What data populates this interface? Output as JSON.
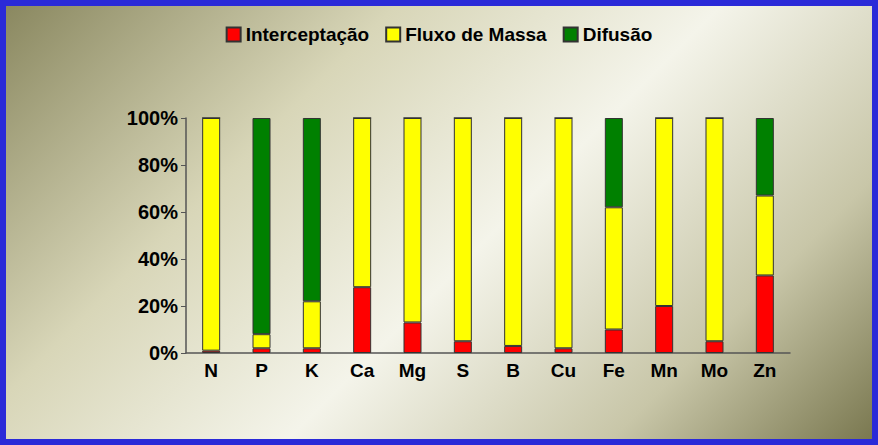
{
  "chart_data": {
    "type": "bar",
    "stacked": true,
    "categories": [
      "N",
      "P",
      "K",
      "Ca",
      "Mg",
      "S",
      "B",
      "Cu",
      "Fe",
      "Mn",
      "Mo",
      "Zn"
    ],
    "series": [
      {
        "name": "Interceptação",
        "color": "#ff0000",
        "values": [
          1,
          2,
          2,
          28,
          13,
          5,
          3,
          2,
          10,
          20,
          5,
          33
        ]
      },
      {
        "name": "Fluxo de Massa",
        "color": "#ffff00",
        "values": [
          99,
          6,
          20,
          72,
          87,
          95,
          97,
          98,
          52,
          80,
          95,
          34
        ]
      },
      {
        "name": "Difusão",
        "color": "#008000",
        "values": [
          0,
          92,
          78,
          0,
          0,
          0,
          0,
          0,
          38,
          0,
          0,
          33
        ]
      }
    ],
    "ylim": [
      0,
      100
    ],
    "yticks": [
      {
        "value": 0,
        "label": "0%"
      },
      {
        "value": 20,
        "label": "20%"
      },
      {
        "value": 40,
        "label": "40%"
      },
      {
        "value": 60,
        "label": "60%"
      },
      {
        "value": 80,
        "label": "80%"
      },
      {
        "value": 100,
        "label": "100%"
      }
    ],
    "grid": false,
    "legend": "top"
  }
}
